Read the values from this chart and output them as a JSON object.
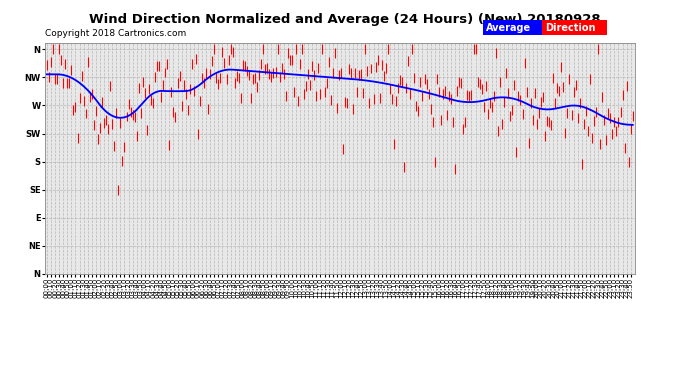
{
  "title": "Wind Direction Normalized and Average (24 Hours) (New) 20180928",
  "copyright": "Copyright 2018 Cartronics.com",
  "background_color": "#ffffff",
  "plot_bg_color": "#e8e8e8",
  "grid_color": "#aaaaaa",
  "ytick_labels": [
    "N",
    "NW",
    "W",
    "SW",
    "S",
    "SE",
    "E",
    "NE",
    "N"
  ],
  "ytick_values": [
    360,
    315,
    270,
    225,
    180,
    135,
    90,
    45,
    0
  ],
  "ylim": [
    0,
    370
  ],
  "num_points": 288,
  "seed": 42,
  "bar_color": "#ff0000",
  "avg_color": "#0000ff",
  "legend_avg_color": "#0000ff",
  "legend_dir_color": "#ff0000"
}
